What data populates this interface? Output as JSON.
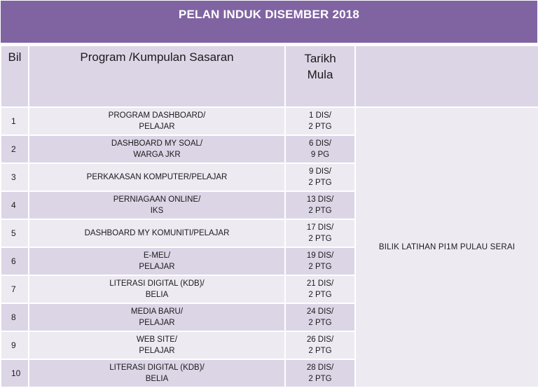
{
  "title": "PELAN INDUK DISEMBER 2018",
  "headers": {
    "bil": "Bil",
    "program": "Program /Kumpulan Sasaran",
    "date_line1": "Tarikh",
    "date_line2": "Mula"
  },
  "location": "BILIK LATIHAN PI1M PULAU SERAI",
  "rows": [
    {
      "bil": "1",
      "program_l1": "PROGRAM DASHBOARD/",
      "program_l2": "PELAJAR",
      "date_l1": "1 DIS/",
      "date_l2": "2 PTG"
    },
    {
      "bil": "2",
      "program_l1": "DASHBOARD MY SOAL/",
      "program_l2": "WARGA JKR",
      "date_l1": "6 DIS/",
      "date_l2": "9 PG"
    },
    {
      "bil": "3",
      "program_l1": "PERKAKASAN KOMPUTER/PELAJAR",
      "program_l2": "",
      "date_l1": "9 DIS/",
      "date_l2": "2 PTG"
    },
    {
      "bil": "4",
      "program_l1": "PERNIAGAAN ONLINE/",
      "program_l2": "IKS",
      "date_l1": "13 DIS/",
      "date_l2": "2 PTG"
    },
    {
      "bil": "5",
      "program_l1": "DASHBOARD MY KOMUNITI/PELAJAR",
      "program_l2": "",
      "date_l1": "17 DIS/",
      "date_l2": "2 PTG"
    },
    {
      "bil": "6",
      "program_l1": "E-MEL/",
      "program_l2": "PELAJAR",
      "date_l1": "19 DIS/",
      "date_l2": "2 PTG"
    },
    {
      "bil": "7",
      "program_l1": "LITERASI DIGITAL (KDB)/",
      "program_l2": "BELIA",
      "date_l1": "21 DIS/",
      "date_l2": "2 PTG"
    },
    {
      "bil": "8",
      "program_l1": "MEDIA BARU/",
      "program_l2": "PELAJAR",
      "date_l1": "24 DIS/",
      "date_l2": "2 PTG"
    },
    {
      "bil": "9",
      "program_l1": "WEB SITE/",
      "program_l2": "PELAJAR",
      "date_l1": "26 DIS/",
      "date_l2": "2 PTG"
    },
    {
      "bil": "10",
      "program_l1": "LITERASI DIGITAL (KDB)/",
      "program_l2": "BELIA",
      "date_l1": "28 DIS/",
      "date_l2": "2 PTG"
    }
  ],
  "colors": {
    "title_bg": "#8064a2",
    "header_bg": "#dcd5e6",
    "row_light": "#edeaf2",
    "row_dark": "#dcd5e6"
  }
}
